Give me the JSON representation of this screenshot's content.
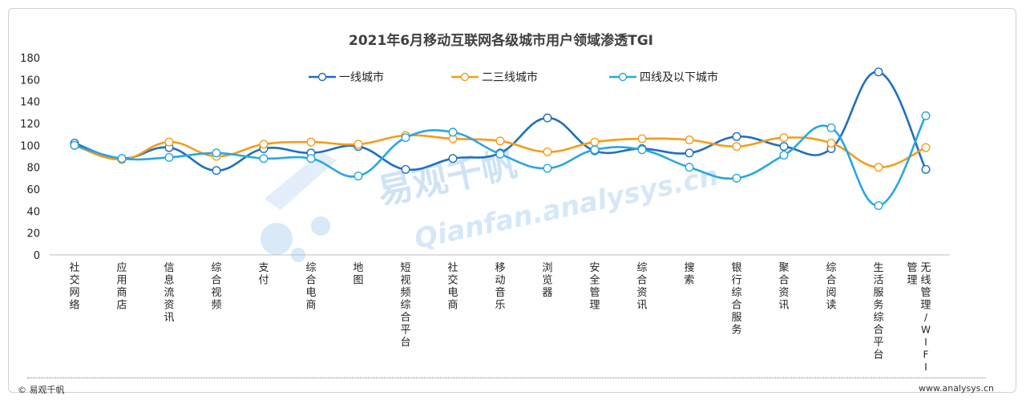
{
  "footer": {
    "copyright": "© 易观千帆",
    "site": "www.analysys.cn"
  },
  "watermark": {
    "brand": "易观千帆",
    "url": "Qianfan.analysys.cn"
  },
  "chart_data": {
    "type": "line",
    "title": "2021年6月移动互联网各级城市用户领域渗透TGI",
    "categories": [
      "社交网络",
      "应用商店",
      "信息流资讯",
      "综合视频",
      "支付",
      "综合电商",
      "地图",
      "短视频综合平台",
      "社交电商",
      "移动音乐",
      "浏览器",
      "安全管理",
      "综合资讯",
      "搜索",
      "银行综合服务",
      "聚合资讯",
      "综合阅读",
      "生活服务综合平台",
      "无线管理/WIFI管理"
    ],
    "ylim": [
      0,
      180
    ],
    "yticks": [
      0,
      20,
      40,
      60,
      80,
      100,
      120,
      140,
      160,
      180
    ],
    "legend_position": "top",
    "series": [
      {
        "name": "一线城市",
        "color": "#1f6fbf",
        "values": [
          102,
          88,
          98,
          77,
          97,
          93,
          99,
          78,
          88,
          93,
          125,
          95,
          97,
          93,
          108,
          99,
          97,
          167,
          78
        ]
      },
      {
        "name": "二三线城市",
        "color": "#f59c1a",
        "values": [
          100,
          87,
          103,
          90,
          101,
          103,
          101,
          109,
          106,
          104,
          94,
          103,
          106,
          105,
          99,
          107,
          102,
          80,
          98
        ]
      },
      {
        "name": "四线及以下城市",
        "color": "#28a7e1",
        "values": [
          100,
          88,
          89,
          93,
          88,
          88,
          72,
          107,
          112,
          92,
          79,
          96,
          96,
          80,
          70,
          91,
          116,
          45,
          127
        ]
      }
    ]
  }
}
